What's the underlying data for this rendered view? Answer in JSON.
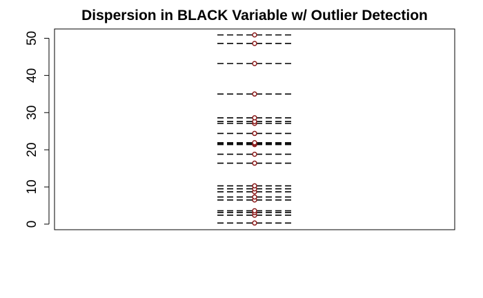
{
  "chart_data": {
    "type": "scatter",
    "title": "Dispersion in BLACK Variable w/ Outlier Detection",
    "xlabel": "",
    "ylabel": "",
    "ylim": [
      -1.5,
      52.5
    ],
    "yticks": [
      0,
      10,
      20,
      30,
      40,
      50
    ],
    "grid": false,
    "series": [
      {
        "values": [
          0.3,
          2.4,
          3.1,
          3.6,
          6.5,
          7.3,
          8.7,
          9.5,
          10.3,
          16.4,
          18.8,
          21.4,
          21.7,
          21.9,
          24.4,
          27.1,
          27.6,
          28.6,
          35.0,
          43.2,
          48.6,
          50.9
        ]
      }
    ],
    "dash_color": "#000000",
    "point_color": "#8b1a1a"
  }
}
